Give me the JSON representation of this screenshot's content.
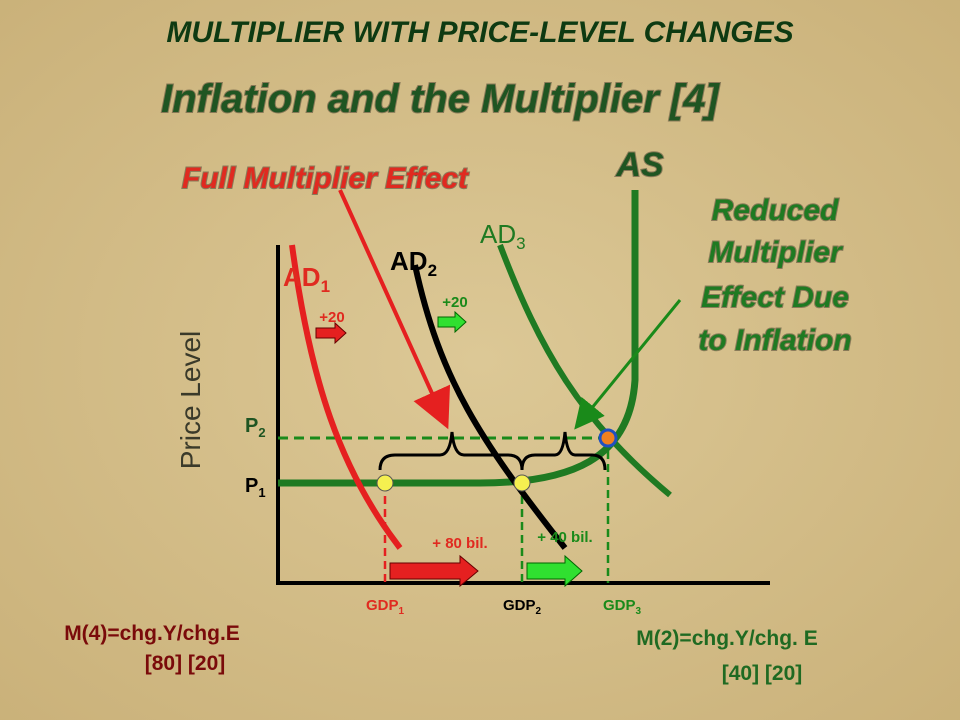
{
  "header": {
    "title": "MULTIPLIER  WITH PRICE-LEVEL CHANGES",
    "subtitle": "Inflation and the Multiplier [4]"
  },
  "callouts": {
    "full": "Full Multiplier Effect",
    "reduced": [
      "Reduced",
      "Multiplier",
      "Effect Due",
      "to Inflation"
    ]
  },
  "curves": {
    "as": "AS",
    "ad1": {
      "main": "AD",
      "sub": "1"
    },
    "ad2": {
      "main": "AD",
      "sub": "2"
    },
    "ad3": {
      "main": "AD",
      "sub": "3"
    }
  },
  "shifts": {
    "ad1": "+20",
    "ad2": "+20"
  },
  "axis": {
    "y": "Price Level",
    "p2": {
      "main": "P",
      "sub": "2"
    },
    "p1": {
      "main": "P",
      "sub": "1"
    }
  },
  "changes": {
    "full": "+ 80 bil.",
    "reduced": "+ 40 bil."
  },
  "gdp": [
    {
      "main": "GDP",
      "sub": "1"
    },
    {
      "main": "GDP",
      "sub": "2"
    },
    {
      "main": "GDP",
      "sub": "3"
    }
  ],
  "formulas": {
    "m4": {
      "formula": "M(4)=chg.Y/chg.E",
      "values": "[80]   [20]"
    },
    "m2": {
      "formula": "M(2)=chg.Y/chg. E",
      "values": "[40]    [20]"
    }
  }
}
